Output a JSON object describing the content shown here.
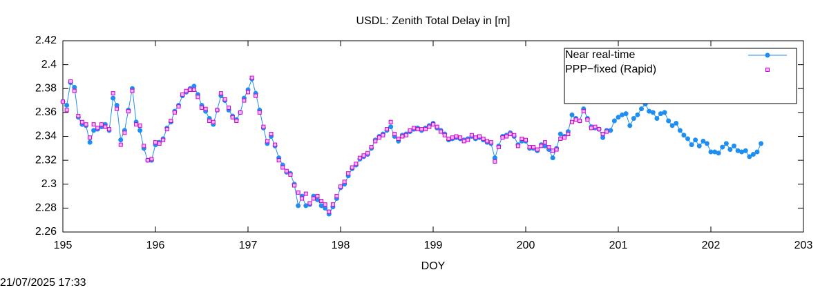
{
  "chart_data": {
    "type": "line",
    "title": "USDL: Zenith Total Delay in [m]",
    "xlabel": "DOY",
    "footer": "21/07/2025 17:33",
    "xlim": [
      195,
      203
    ],
    "xticks": [
      195,
      196,
      197,
      198,
      199,
      200,
      201,
      202,
      203
    ],
    "ylim": [
      2.26,
      2.42
    ],
    "yticks": [
      2.26,
      2.28,
      2.3,
      2.32,
      2.34,
      2.36,
      2.38,
      2.4,
      2.42
    ],
    "legend": "upper right",
    "series": [
      {
        "name": "Near real-time",
        "color": "#1e8ef0",
        "line": true,
        "marker": "circle",
        "x": [
          195,
          195.042,
          195.083,
          195.125,
          195.167,
          195.208,
          195.25,
          195.292,
          195.333,
          195.375,
          195.417,
          195.458,
          195.5,
          195.542,
          195.583,
          195.625,
          195.667,
          195.708,
          195.75,
          195.792,
          195.833,
          195.875,
          195.917,
          195.958,
          196,
          196.042,
          196.083,
          196.125,
          196.167,
          196.208,
          196.25,
          196.292,
          196.333,
          196.375,
          196.417,
          196.458,
          196.5,
          196.542,
          196.583,
          196.625,
          196.667,
          196.708,
          196.75,
          196.792,
          196.833,
          196.875,
          196.917,
          196.958,
          197,
          197.042,
          197.083,
          197.125,
          197.167,
          197.208,
          197.25,
          197.292,
          197.333,
          197.375,
          197.417,
          197.458,
          197.5,
          197.542,
          197.583,
          197.625,
          197.667,
          197.708,
          197.75,
          197.792,
          197.833,
          197.875,
          197.917,
          197.958,
          198,
          198.042,
          198.083,
          198.125,
          198.167,
          198.208,
          198.25,
          198.292,
          198.333,
          198.375,
          198.417,
          198.458,
          198.5,
          198.542,
          198.583,
          198.625,
          198.667,
          198.708,
          198.75,
          198.792,
          198.833,
          198.875,
          198.917,
          198.958,
          199,
          199.042,
          199.083,
          199.125,
          199.167,
          199.208,
          199.25,
          199.292,
          199.333,
          199.375,
          199.417,
          199.458,
          199.5,
          199.542,
          199.583,
          199.625,
          199.667,
          199.708,
          199.75,
          199.792,
          199.833,
          199.875,
          199.917,
          199.958,
          200,
          200.042,
          200.083,
          200.125,
          200.167,
          200.208,
          200.25,
          200.292,
          200.333,
          200.375,
          200.417,
          200.458,
          200.5,
          200.542,
          200.583,
          200.625,
          200.667,
          200.708,
          200.75,
          200.792,
          200.833,
          200.875,
          200.917,
          200.958,
          201,
          201.042,
          201.083,
          201.125,
          201.167,
          201.208,
          201.25,
          201.292,
          201.333,
          201.375,
          201.417,
          201.458,
          201.5,
          201.542,
          201.583,
          201.625,
          201.667,
          201.708,
          201.75,
          201.792,
          201.833,
          201.875,
          201.917,
          201.958,
          202,
          202.042,
          202.083,
          202.125,
          202.167,
          202.208,
          202.25,
          202.292,
          202.333,
          202.375,
          202.417,
          202.458,
          202.5,
          202.542
        ],
        "values": [
          2.369,
          2.366,
          2.385,
          2.381,
          2.356,
          2.35,
          2.349,
          2.335,
          2.345,
          2.346,
          2.348,
          2.35,
          2.345,
          2.372,
          2.366,
          2.337,
          2.345,
          2.362,
          2.38,
          2.352,
          2.345,
          2.33,
          2.32,
          2.32,
          2.333,
          2.335,
          2.338,
          2.347,
          2.352,
          2.361,
          2.366,
          2.374,
          2.377,
          2.38,
          2.382,
          2.375,
          2.366,
          2.361,
          2.355,
          2.35,
          2.362,
          2.374,
          2.37,
          2.362,
          2.357,
          2.354,
          2.36,
          2.372,
          2.379,
          2.388,
          2.376,
          2.362,
          2.347,
          2.334,
          2.34,
          2.332,
          2.322,
          2.316,
          2.31,
          2.309,
          2.3,
          2.282,
          2.29,
          2.282,
          2.283,
          2.29,
          2.287,
          2.282,
          2.28,
          2.275,
          2.281,
          2.288,
          2.297,
          2.3,
          2.307,
          2.313,
          2.316,
          2.321,
          2.323,
          2.325,
          2.33,
          2.337,
          2.34,
          2.342,
          2.345,
          2.348,
          2.34,
          2.336,
          2.341,
          2.342,
          2.344,
          2.346,
          2.347,
          2.345,
          2.347,
          2.349,
          2.351,
          2.347,
          2.345,
          2.342,
          2.337,
          2.338,
          2.339,
          2.338,
          2.337,
          2.338,
          2.34,
          2.338,
          2.339,
          2.337,
          2.335,
          2.334,
          2.322,
          2.332,
          2.34,
          2.341,
          2.343,
          2.34,
          2.333,
          2.336,
          2.336,
          2.33,
          2.33,
          2.328,
          2.333,
          2.332,
          2.329,
          2.322,
          2.33,
          2.342,
          2.34,
          2.344,
          2.358,
          2.355,
          2.353,
          2.363,
          2.355,
          2.348,
          2.347,
          2.346,
          2.339,
          2.345,
          2.345,
          2.353,
          2.356,
          2.358,
          2.359,
          2.349,
          2.355,
          2.358,
          2.363,
          2.367,
          2.361,
          2.36,
          2.355,
          2.359,
          2.36,
          2.353,
          2.349,
          2.351,
          2.345,
          2.341,
          2.338,
          2.333,
          2.337,
          2.332,
          2.336,
          2.334,
          2.327,
          2.327,
          2.326,
          2.331,
          2.334,
          2.329,
          2.332,
          2.328,
          2.327,
          2.328,
          2.323,
          2.325,
          2.327,
          2.334
        ]
      },
      {
        "name": "PPP−fixed (Rapid)",
        "color": "#cc00cc",
        "line": false,
        "marker": "square",
        "x": [
          195,
          195.042,
          195.083,
          195.125,
          195.167,
          195.208,
          195.25,
          195.292,
          195.333,
          195.375,
          195.417,
          195.458,
          195.5,
          195.542,
          195.583,
          195.625,
          195.667,
          195.708,
          195.75,
          195.792,
          195.833,
          195.875,
          195.917,
          195.958,
          196,
          196.042,
          196.083,
          196.125,
          196.167,
          196.208,
          196.25,
          196.292,
          196.333,
          196.375,
          196.417,
          196.458,
          196.5,
          196.542,
          196.583,
          196.625,
          196.667,
          196.708,
          196.75,
          196.792,
          196.833,
          196.875,
          196.917,
          196.958,
          197,
          197.042,
          197.083,
          197.125,
          197.167,
          197.208,
          197.25,
          197.292,
          197.333,
          197.375,
          197.417,
          197.458,
          197.5,
          197.542,
          197.583,
          197.625,
          197.667,
          197.708,
          197.75,
          197.792,
          197.833,
          197.875,
          197.917,
          197.958,
          198,
          198.042,
          198.083,
          198.125,
          198.167,
          198.208,
          198.25,
          198.292,
          198.333,
          198.375,
          198.417,
          198.458,
          198.5,
          198.542,
          198.583,
          198.625,
          198.667,
          198.708,
          198.75,
          198.792,
          198.833,
          198.875,
          198.917,
          198.958,
          199,
          199.042,
          199.083,
          199.125,
          199.167,
          199.208,
          199.25,
          199.292,
          199.333,
          199.375,
          199.417,
          199.458,
          199.5,
          199.542,
          199.583,
          199.625,
          199.667,
          199.708,
          199.75,
          199.792,
          199.833,
          199.875,
          199.917,
          199.958,
          200,
          200.042,
          200.083,
          200.125,
          200.167,
          200.208,
          200.25,
          200.292,
          200.333,
          200.375,
          200.417,
          200.458,
          200.5,
          200.542,
          200.583,
          200.625,
          200.667,
          200.708,
          200.75,
          200.792,
          200.833,
          200.875
        ],
        "values": [
          2.369,
          2.362,
          2.386,
          2.378,
          2.357,
          2.352,
          2.35,
          2.339,
          2.35,
          2.347,
          2.35,
          2.348,
          2.346,
          2.376,
          2.363,
          2.333,
          2.343,
          2.361,
          2.378,
          2.35,
          2.349,
          2.332,
          2.32,
          2.321,
          2.335,
          2.334,
          2.337,
          2.346,
          2.353,
          2.36,
          2.365,
          2.375,
          2.378,
          2.379,
          2.379,
          2.373,
          2.364,
          2.363,
          2.353,
          2.352,
          2.362,
          2.376,
          2.371,
          2.364,
          2.356,
          2.353,
          2.36,
          2.37,
          2.377,
          2.389,
          2.374,
          2.36,
          2.348,
          2.336,
          2.342,
          2.333,
          2.32,
          2.314,
          2.311,
          2.308,
          2.299,
          2.293,
          2.288,
          2.292,
          2.284,
          2.288,
          2.29,
          2.286,
          2.283,
          2.277,
          2.283,
          2.29,
          2.298,
          2.302,
          2.309,
          2.314,
          2.317,
          2.322,
          2.324,
          2.326,
          2.331,
          2.336,
          2.339,
          2.341,
          2.346,
          2.352,
          2.342,
          2.338,
          2.34,
          2.341,
          2.345,
          2.347,
          2.346,
          2.346,
          2.346,
          2.348,
          2.35,
          2.348,
          2.344,
          2.341,
          2.338,
          2.339,
          2.34,
          2.339,
          2.336,
          2.337,
          2.341,
          2.339,
          2.34,
          2.338,
          2.336,
          2.335,
          2.319,
          2.331,
          2.339,
          2.34,
          2.342,
          2.341,
          2.332,
          2.338,
          2.337,
          2.331,
          2.331,
          2.329,
          2.332,
          2.335,
          2.331,
          2.328,
          2.329,
          2.338,
          2.339,
          2.342,
          2.352,
          2.354,
          2.353,
          2.361,
          2.354,
          2.347,
          2.348,
          2.346,
          2.342,
          2.344
        ]
      }
    ]
  }
}
